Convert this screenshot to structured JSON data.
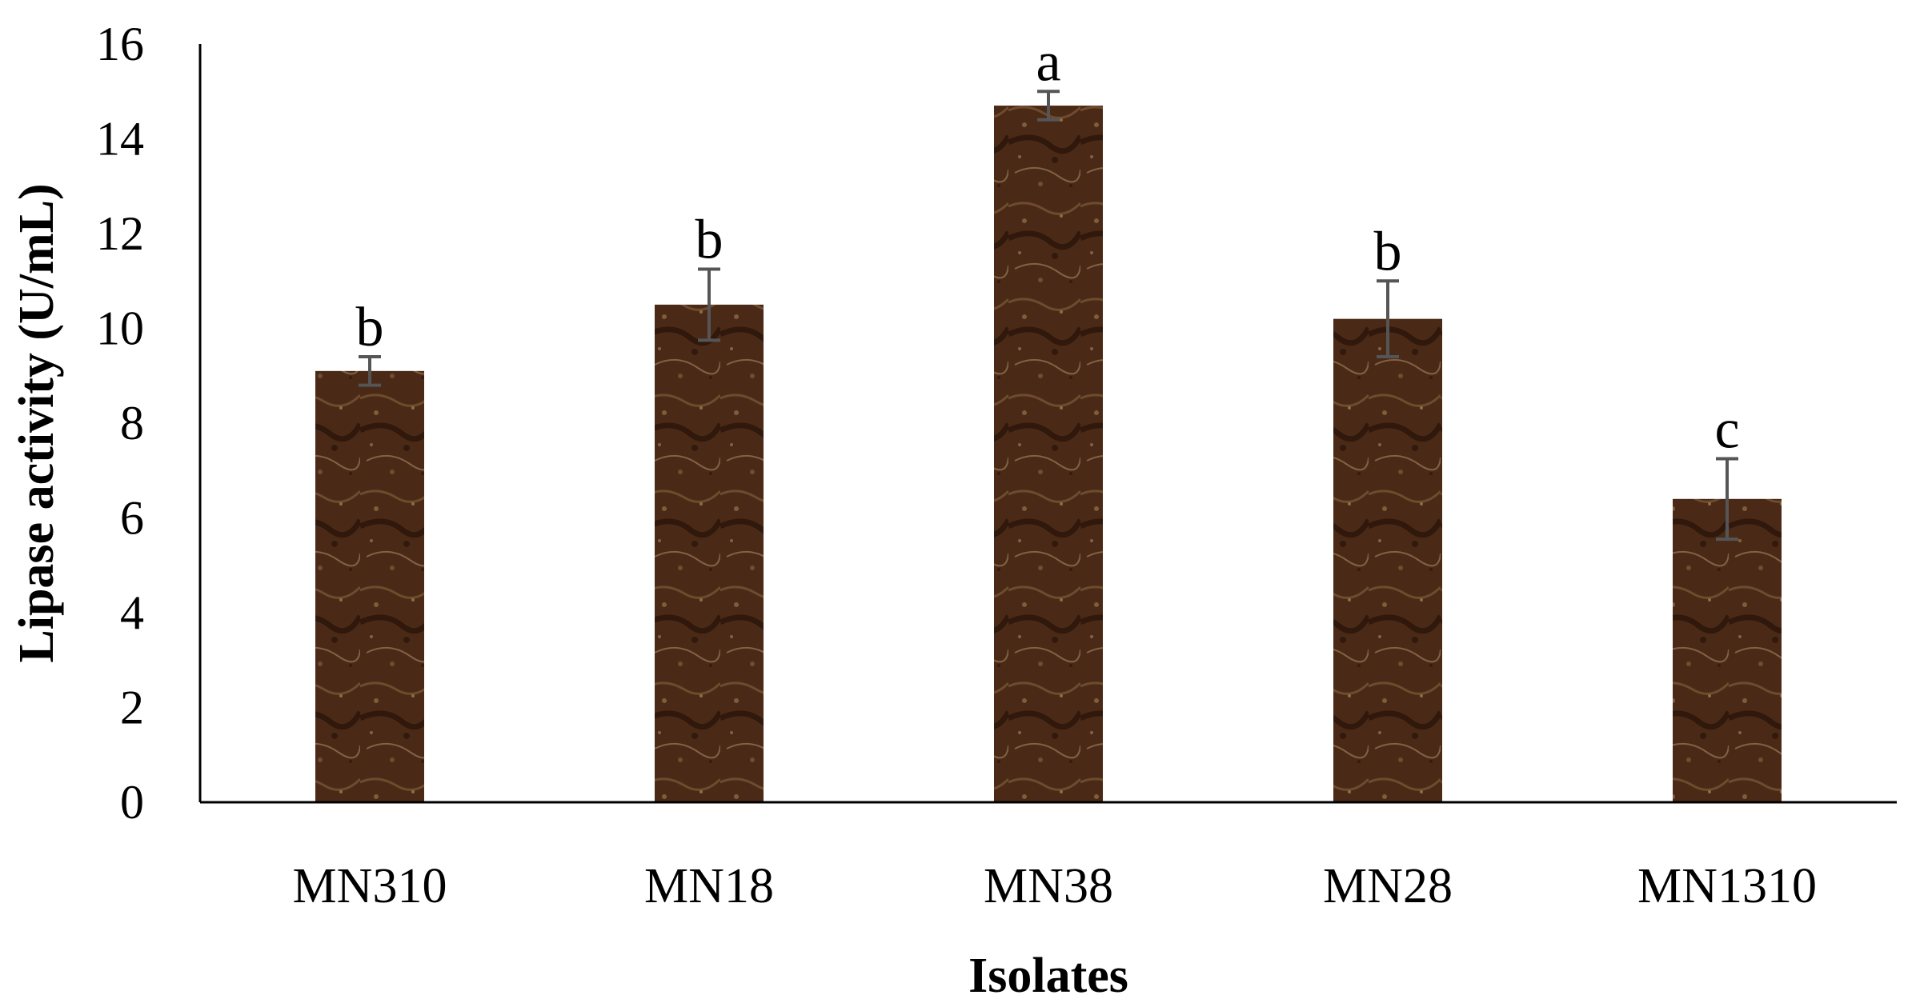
{
  "chart_data": {
    "type": "bar",
    "categories": [
      "MN310",
      "MN18",
      "MN38",
      "MN28",
      "MN1310"
    ],
    "series": [
      {
        "values": [
          9.1,
          10.5,
          14.7,
          10.2,
          6.4
        ],
        "error": [
          0.3,
          0.75,
          0.3,
          0.8,
          0.85
        ],
        "significance": [
          "b",
          "b",
          "a",
          "b",
          "c"
        ]
      }
    ],
    "xlabel": "Isolates",
    "ylabel": "Lipase activity (U/mL)",
    "ylim": [
      0,
      16
    ],
    "yticks": [
      0,
      2,
      4,
      6,
      8,
      10,
      12,
      14,
      16
    ],
    "grid": false,
    "legend": "none",
    "colors": {
      "bar_base": "#4a2a16",
      "bar_dark": "#2b160a",
      "bar_light": "#8a6a45",
      "error_bar": "#555555",
      "axis": "#000000"
    }
  }
}
